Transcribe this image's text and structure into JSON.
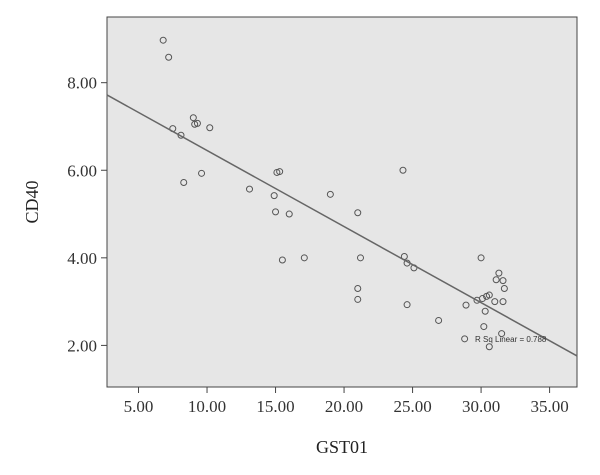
{
  "chart_data": {
    "type": "scatter",
    "xlabel": "GST01",
    "ylabel": "CD40",
    "xlim": [
      2.7,
      37.0
    ],
    "ylim": [
      1.05,
      9.5
    ],
    "x_ticks": [
      5,
      10,
      15,
      20,
      25,
      30,
      35
    ],
    "x_tick_labels": [
      "5.00",
      "10.00",
      "15.00",
      "20.00",
      "25.00",
      "30.00",
      "35.00"
    ],
    "y_ticks": [
      2,
      4,
      6,
      8
    ],
    "y_tick_labels": [
      "2.00",
      "4.00",
      "6.00",
      "8.00"
    ],
    "grid": false,
    "plot_background": "#e6e6e6",
    "marker_color": "#555555",
    "line_color": "#666666",
    "fit_line": {
      "label": "R Sq Linear = 0.788",
      "start": [
        2.7,
        7.72
      ],
      "end": [
        37.0,
        1.76
      ]
    },
    "points": [
      [
        6.8,
        8.97
      ],
      [
        7.2,
        8.58
      ],
      [
        7.5,
        6.95
      ],
      [
        8.1,
        6.8
      ],
      [
        8.3,
        5.72
      ],
      [
        9.0,
        7.2
      ],
      [
        9.1,
        7.05
      ],
      [
        9.3,
        7.07
      ],
      [
        9.6,
        5.93
      ],
      [
        10.2,
        6.97
      ],
      [
        13.1,
        5.57
      ],
      [
        14.9,
        5.42
      ],
      [
        15.0,
        5.05
      ],
      [
        15.1,
        5.95
      ],
      [
        15.3,
        5.97
      ],
      [
        15.5,
        3.95
      ],
      [
        16.0,
        5.0
      ],
      [
        17.1,
        4.0
      ],
      [
        19.0,
        5.45
      ],
      [
        21.0,
        5.03
      ],
      [
        21.0,
        3.3
      ],
      [
        21.0,
        3.05
      ],
      [
        21.2,
        4.0
      ],
      [
        24.3,
        6.0
      ],
      [
        24.4,
        4.03
      ],
      [
        24.6,
        3.88
      ],
      [
        24.6,
        2.93
      ],
      [
        25.1,
        3.77
      ],
      [
        26.9,
        2.57
      ],
      [
        28.8,
        2.15
      ],
      [
        28.9,
        2.92
      ],
      [
        29.7,
        3.03
      ],
      [
        30.0,
        4.0
      ],
      [
        30.1,
        3.07
      ],
      [
        30.2,
        2.43
      ],
      [
        30.3,
        2.78
      ],
      [
        30.4,
        3.12
      ],
      [
        30.6,
        3.15
      ],
      [
        30.6,
        1.97
      ],
      [
        31.0,
        3.0
      ],
      [
        31.1,
        3.5
      ],
      [
        31.3,
        3.65
      ],
      [
        31.5,
        2.27
      ],
      [
        31.6,
        3.48
      ],
      [
        31.6,
        3.0
      ],
      [
        31.7,
        3.3
      ]
    ]
  }
}
